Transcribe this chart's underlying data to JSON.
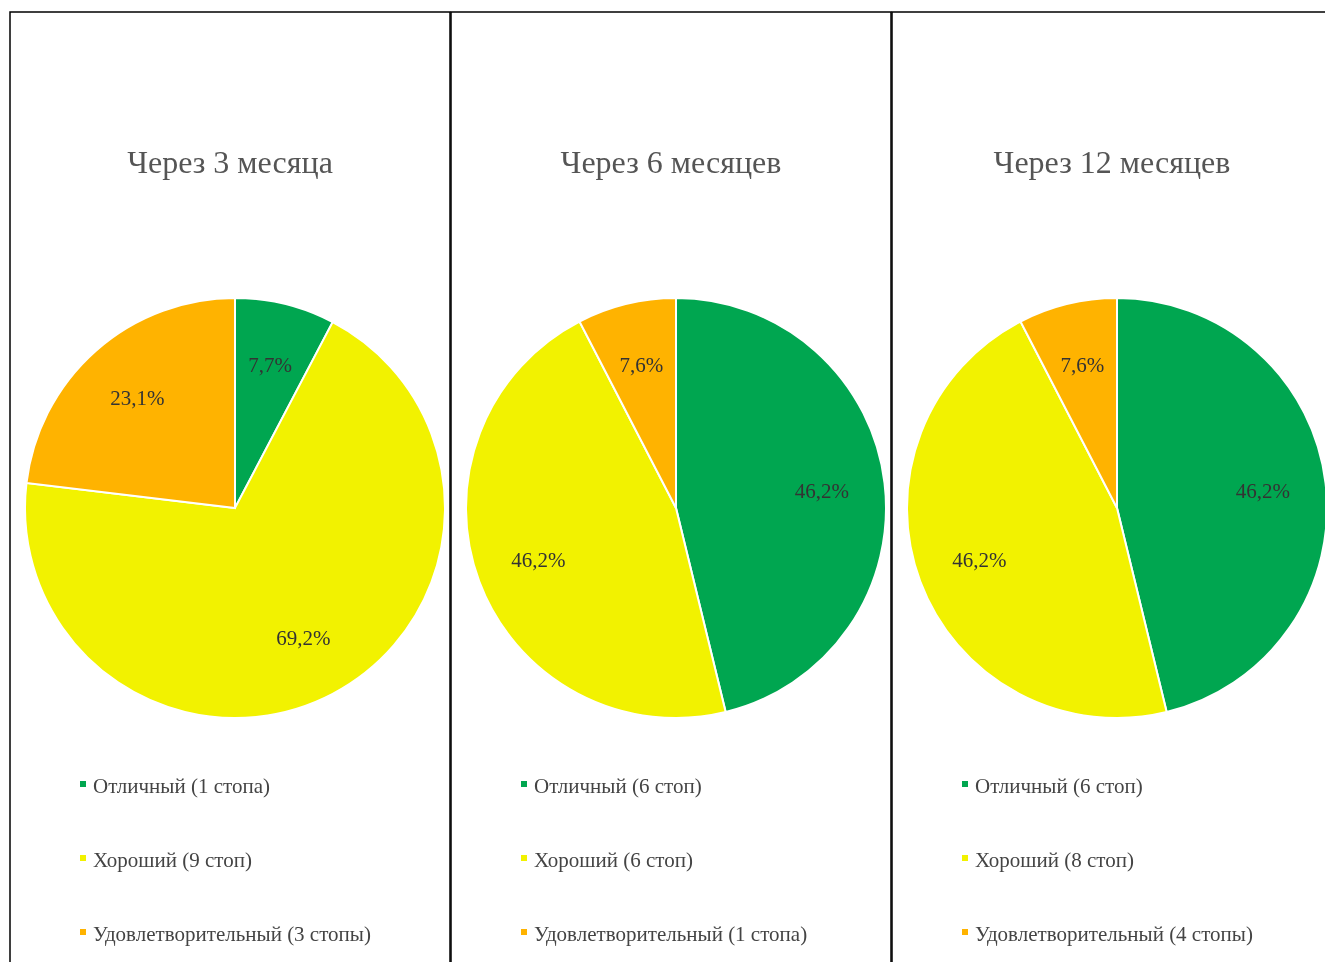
{
  "chart_data": [
    {
      "type": "pie",
      "title": "Через 3 месяца",
      "categories": [
        "Отличный (1 стопа)",
        "Хороший (9 стоп)",
        "Удовлетворительный (3 стопы)"
      ],
      "values": [
        7.7,
        69.2,
        23.1
      ],
      "colors": [
        "#00a650",
        "#f2f200",
        "#ffb300"
      ],
      "value_labels": [
        "7,7%",
        "69,2%",
        "23,1%"
      ],
      "legend": "bottom"
    },
    {
      "type": "pie",
      "title": "Через 6 месяцев",
      "categories": [
        "Отличный (6 стоп)",
        "Хороший (6 стоп)",
        "Удовлетворительный (1 стопа)"
      ],
      "values": [
        46.2,
        46.2,
        7.6
      ],
      "colors": [
        "#00a650",
        "#f2f200",
        "#ffb300"
      ],
      "value_labels": [
        "46,2%",
        "46,2%",
        "7,6%"
      ],
      "legend": "bottom"
    },
    {
      "type": "pie",
      "title": "Через 12 месяцев",
      "categories": [
        "Отличный (6 стоп)",
        "Хороший (8 стоп)",
        "Удовлетворительный (4 стопы)"
      ],
      "values": [
        46.2,
        46.2,
        7.6
      ],
      "colors": [
        "#00a650",
        "#f2f200",
        "#ffb300"
      ],
      "value_labels": [
        "46,2%",
        "46,2%",
        "7,6%"
      ],
      "legend": "bottom"
    }
  ]
}
